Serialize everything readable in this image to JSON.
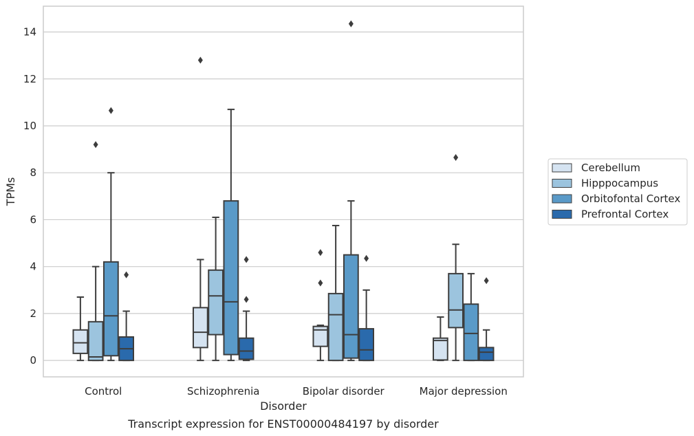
{
  "chart_data": {
    "type": "boxplot",
    "title": "Transcript expression for ENST00000484197 by disorder",
    "xlabel": "Disorder",
    "ylabel": "TPMs",
    "ylim": [
      -0.7,
      15.1
    ],
    "yticks": [
      0,
      2,
      4,
      6,
      8,
      10,
      12,
      14
    ],
    "grid": true,
    "legend_position": "right",
    "categories": [
      "Control",
      "Schizophrenia",
      "Bipolar disorder",
      "Major depression"
    ],
    "series": [
      {
        "name": "Cerebellum",
        "color": "#d5e3f1",
        "boxes": [
          {
            "whislo": 0.0,
            "q1": 0.3,
            "med": 0.75,
            "q3": 1.3,
            "whishi": 2.7,
            "fliers": []
          },
          {
            "whislo": 0.0,
            "q1": 0.55,
            "med": 1.2,
            "q3": 2.25,
            "whishi": 4.3,
            "fliers": [
              12.8
            ]
          },
          {
            "whislo": 0.0,
            "q1": 0.6,
            "med": 1.3,
            "q3": 1.45,
            "whishi": 1.5,
            "fliers": [
              3.3,
              4.6
            ]
          },
          {
            "whislo": 0.0,
            "q1": 0.02,
            "med": 0.85,
            "q3": 0.95,
            "whishi": 1.85,
            "fliers": []
          }
        ]
      },
      {
        "name": "Hipppocampus",
        "color": "#9cc4de",
        "boxes": [
          {
            "whislo": 0.0,
            "q1": 0.0,
            "med": 0.15,
            "q3": 1.65,
            "whishi": 4.0,
            "fliers": [
              9.2
            ]
          },
          {
            "whislo": 0.0,
            "q1": 1.1,
            "med": 2.75,
            "q3": 3.85,
            "whishi": 6.1,
            "fliers": []
          },
          {
            "whislo": 0.0,
            "q1": 0.0,
            "med": 1.95,
            "q3": 2.85,
            "whishi": 5.75,
            "fliers": []
          },
          {
            "whislo": 0.0,
            "q1": 1.4,
            "med": 2.15,
            "q3": 3.7,
            "whishi": 4.95,
            "fliers": [
              8.65
            ]
          }
        ]
      },
      {
        "name": "Orbitofontal Cortex",
        "color": "#5a9ac8",
        "boxes": [
          {
            "whislo": 0.0,
            "q1": 0.2,
            "med": 1.9,
            "q3": 4.2,
            "whishi": 8.0,
            "fliers": [
              10.65
            ]
          },
          {
            "whislo": 0.0,
            "q1": 0.25,
            "med": 2.5,
            "q3": 6.8,
            "whishi": 10.7,
            "fliers": []
          },
          {
            "whislo": 0.0,
            "q1": 0.1,
            "med": 1.1,
            "q3": 4.5,
            "whishi": 6.8,
            "fliers": [
              14.35
            ]
          },
          {
            "whislo": 0.0,
            "q1": 0.0,
            "med": 1.15,
            "q3": 2.4,
            "whishi": 3.7,
            "fliers": []
          }
        ]
      },
      {
        "name": "Prefrontal Cortex",
        "color": "#2a6aac",
        "boxes": [
          {
            "whislo": 0.0,
            "q1": 0.0,
            "med": 0.5,
            "q3": 1.0,
            "whishi": 2.1,
            "fliers": [
              3.65
            ]
          },
          {
            "whislo": 0.0,
            "q1": 0.05,
            "med": 0.4,
            "q3": 0.95,
            "whishi": 2.1,
            "fliers": [
              2.6,
              4.3
            ]
          },
          {
            "whislo": 0.0,
            "q1": 0.0,
            "med": 0.45,
            "q3": 1.35,
            "whishi": 3.0,
            "fliers": [
              4.35
            ]
          },
          {
            "whislo": 0.0,
            "q1": 0.0,
            "med": 0.35,
            "q3": 0.55,
            "whishi": 1.3,
            "fliers": [
              3.4
            ]
          }
        ]
      }
    ]
  }
}
